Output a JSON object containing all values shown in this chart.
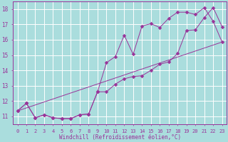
{
  "xlabel": "Windchill (Refroidissement éolien,°C)",
  "xlim": [
    -0.5,
    23.5
  ],
  "ylim": [
    10.5,
    18.5
  ],
  "xticks": [
    0,
    1,
    2,
    3,
    4,
    5,
    6,
    7,
    8,
    9,
    10,
    11,
    12,
    13,
    14,
    15,
    16,
    17,
    18,
    19,
    20,
    21,
    22,
    23
  ],
  "yticks": [
    11,
    12,
    13,
    14,
    15,
    16,
    17,
    18
  ],
  "color": "#993399",
  "bg_color": "#aadddd",
  "grid_color": "#ffffff",
  "line1_x": [
    0,
    1,
    2,
    3,
    4,
    5,
    6,
    7,
    8,
    9,
    10,
    11,
    12,
    13,
    14,
    15,
    16,
    17,
    18,
    19,
    20,
    21,
    22,
    23
  ],
  "line1_y": [
    11.35,
    11.85,
    10.9,
    11.1,
    10.9,
    10.85,
    10.85,
    11.1,
    11.15,
    12.6,
    12.6,
    13.1,
    13.45,
    13.6,
    13.65,
    14.0,
    14.4,
    14.55,
    15.1,
    16.6,
    16.65,
    17.45,
    18.1,
    16.85
  ],
  "line2_x": [
    0,
    1,
    2,
    3,
    4,
    5,
    6,
    7,
    8,
    9,
    10,
    11,
    12,
    13,
    14,
    15,
    16,
    17,
    18,
    19,
    20,
    21,
    22,
    23
  ],
  "line2_y": [
    11.35,
    11.85,
    10.9,
    11.1,
    10.9,
    10.85,
    10.85,
    11.1,
    11.15,
    12.6,
    14.5,
    14.9,
    16.3,
    15.05,
    16.9,
    17.05,
    16.8,
    17.4,
    17.8,
    17.8,
    17.65,
    18.1,
    17.2,
    15.85
  ],
  "line3_x": [
    0,
    23
  ],
  "line3_y": [
    11.35,
    15.85
  ],
  "font_color": "#993399",
  "tick_fontsize": 5.0,
  "xlabel_fontsize": 5.5
}
